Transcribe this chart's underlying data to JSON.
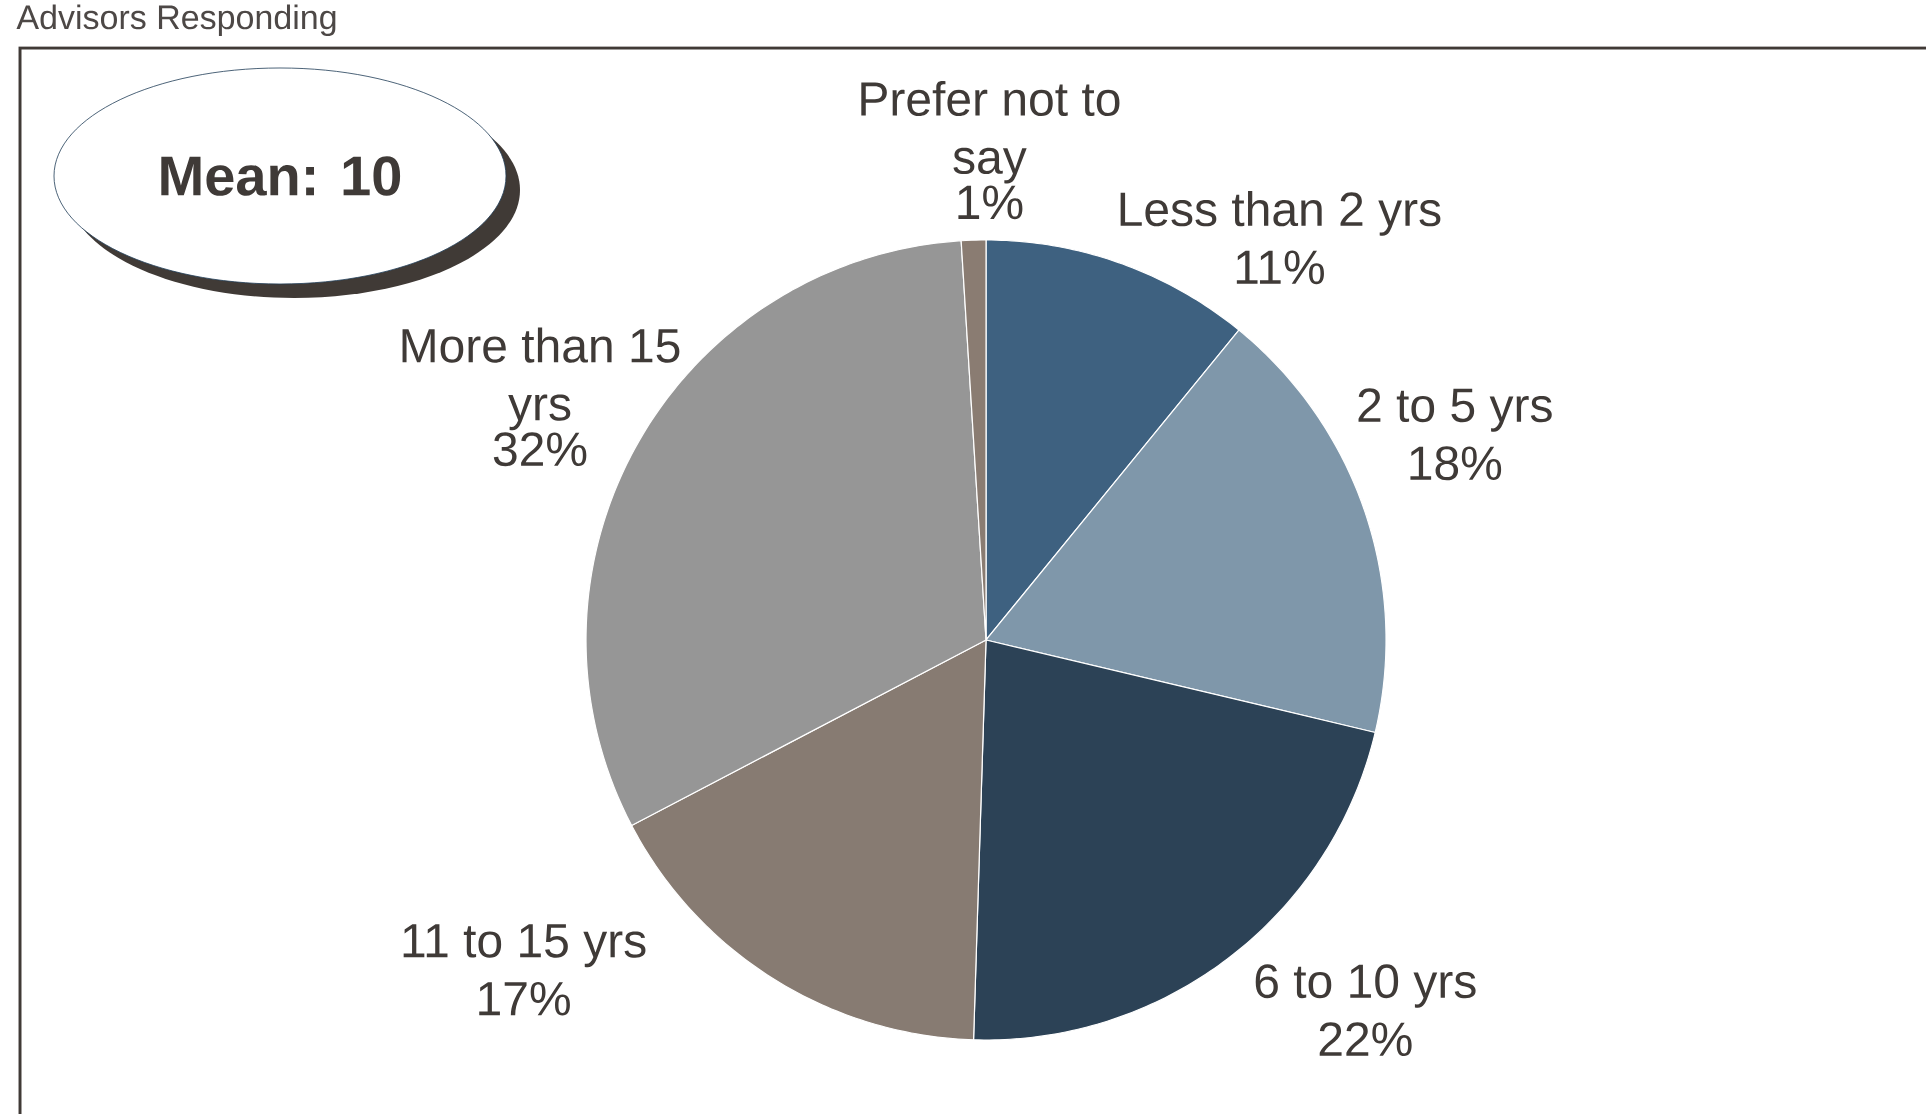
{
  "chart_data": {
    "type": "pie",
    "title": "Advisors Responding",
    "categories": [
      "Less than 2 yrs",
      "2 to 5 yrs",
      "6 to 10 yrs",
      "11 to 15 yrs",
      "More than 15 yrs",
      "Prefer not to say"
    ],
    "values": [
      11,
      18,
      22,
      17,
      32,
      1
    ],
    "value_labels": [
      "11%",
      "18%",
      "22%",
      "17%",
      "32%",
      "1%"
    ],
    "colors": [
      "#3e6180",
      "#7f97aa",
      "#2c4256",
      "#877b72",
      "#969696",
      "#8a7c72"
    ],
    "annotations": [
      "Mean: 10"
    ]
  }
}
